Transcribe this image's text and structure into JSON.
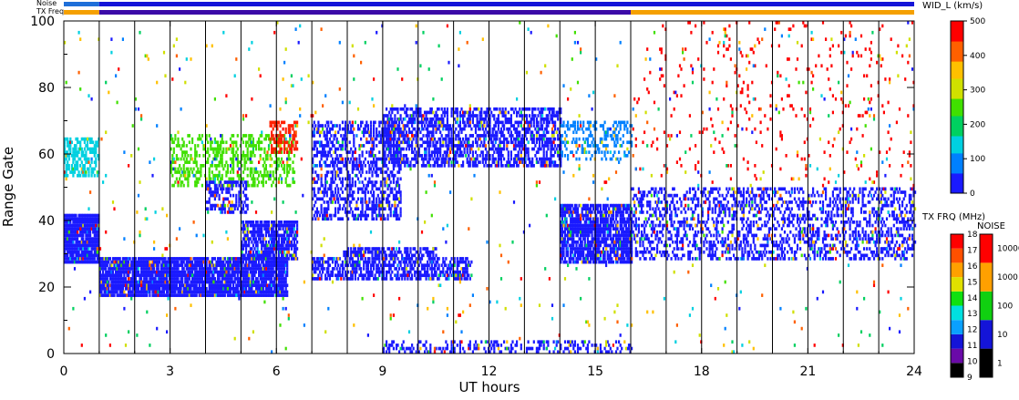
{
  "chart_data": {
    "type": "heatmap",
    "title": "",
    "xlabel": "UT hours",
    "ylabel": "Range Gate",
    "xlim": [
      0,
      24
    ],
    "ylim": [
      0,
      100
    ],
    "xticks": [
      "0",
      "3",
      "6",
      "9",
      "12",
      "15",
      "18",
      "21",
      "24"
    ],
    "yticks": [
      "0",
      "20",
      "40",
      "60",
      "80",
      "100"
    ],
    "hour_markers": [
      1,
      2,
      3,
      4,
      5,
      6,
      7,
      8,
      9,
      10,
      11,
      12,
      13,
      14,
      15,
      16,
      17,
      18,
      19,
      20,
      21,
      22,
      23
    ],
    "top_bars": {
      "noise_label": "Noise",
      "txfreq_label": "TX Freq",
      "noise_segments": [
        {
          "from": 0,
          "to": 1,
          "color": "#1e6fd9"
        },
        {
          "from": 1,
          "to": 24,
          "color": "#1414d8"
        }
      ],
      "txfreq_segments": [
        {
          "from": 0,
          "to": 1,
          "color": "#f5a000"
        },
        {
          "from": 1,
          "to": 16,
          "color": "#3b0aa8"
        },
        {
          "from": 16,
          "to": 24,
          "color": "#f5a000"
        }
      ]
    },
    "colorbars": {
      "width": {
        "title": "WID_L (km/s)",
        "ticks": [
          "0",
          "100",
          "200",
          "300",
          "400",
          "500"
        ],
        "range": [
          0,
          500
        ],
        "colors": [
          "#1a1aff",
          "#0080ff",
          "#00d0e0",
          "#00d060",
          "#40e000",
          "#d0e000",
          "#ffc000",
          "#ff6000",
          "#ff0000"
        ]
      },
      "txfreq": {
        "title": "TX FRQ (MHz)",
        "ticks": [
          "9",
          "10",
          "11",
          "12",
          "13",
          "14",
          "15",
          "16",
          "17",
          "18"
        ],
        "colors": [
          "#000000",
          "#6a0aa8",
          "#1414d8",
          "#0aa0ff",
          "#00e0e0",
          "#10e010",
          "#e0e000",
          "#ffa000",
          "#ff5000",
          "#ff0000"
        ]
      },
      "noise": {
        "title": "NOISE",
        "ticks": [
          "1",
          "10",
          "100",
          "1000",
          "10000"
        ],
        "colors": [
          "#000000",
          "#1414d8",
          "#10d010",
          "#ffa000",
          "#ff0000"
        ]
      }
    },
    "regions": [
      {
        "name": "blue-band-morning",
        "x": [
          0,
          1
        ],
        "y": [
          27,
          42
        ],
        "density": 0.95,
        "color": "#1a1aff"
      },
      {
        "name": "blue-band-low",
        "x": [
          1,
          6.3
        ],
        "y": [
          17,
          29
        ],
        "density": 0.9,
        "color": "#1a1aff"
      },
      {
        "name": "blue-band-rise",
        "x": [
          5,
          6.6
        ],
        "y": [
          28,
          40
        ],
        "density": 0.75,
        "color": "#1a1aff"
      },
      {
        "name": "scatter-60-morning",
        "x": [
          0,
          1
        ],
        "y": [
          53,
          65
        ],
        "density": 0.6,
        "color": "#00d0e0"
      },
      {
        "name": "scatter-50-60-day",
        "x": [
          3,
          6.5
        ],
        "y": [
          50,
          66
        ],
        "density": 0.35,
        "color": "#40e000"
      },
      {
        "name": "cluster-6hr",
        "x": [
          5.8,
          6.6
        ],
        "y": [
          60,
          70
        ],
        "density": 0.55,
        "color": "#ff2000"
      },
      {
        "name": "blue-patches-45",
        "x": [
          4,
          5.2
        ],
        "y": [
          42,
          52
        ],
        "density": 0.5,
        "color": "#1a1aff"
      },
      {
        "name": "curve-8-9hr",
        "x": [
          7,
          9.5
        ],
        "y": [
          40,
          70
        ],
        "density": 0.45,
        "color": "#1a1aff"
      },
      {
        "name": "arc-9-15hr",
        "x": [
          9,
          14
        ],
        "y": [
          56,
          74
        ],
        "density": 0.55,
        "color": "#1a1aff"
      },
      {
        "name": "arc-14-15hr",
        "x": [
          14,
          16
        ],
        "y": [
          58,
          70
        ],
        "density": 0.35,
        "color": "#0080ff"
      },
      {
        "name": "band-25",
        "x": [
          7,
          11.5
        ],
        "y": [
          22,
          29
        ],
        "density": 0.6,
        "color": "#1a1aff"
      },
      {
        "name": "band-30",
        "x": [
          7.8,
          10.5
        ],
        "y": [
          29,
          32
        ],
        "density": 0.6,
        "color": "#1a1aff"
      },
      {
        "name": "blue-15-16hr",
        "x": [
          14,
          16
        ],
        "y": [
          27,
          45
        ],
        "density": 0.8,
        "color": "#1a1aff"
      },
      {
        "name": "blue-16-24hr",
        "x": [
          16,
          24
        ],
        "y": [
          28,
          50
        ],
        "density": 0.35,
        "color": "#1a1aff"
      },
      {
        "name": "bottom-band",
        "x": [
          9,
          16
        ],
        "y": [
          0,
          4
        ],
        "density": 0.35,
        "color": "#1a1aff"
      },
      {
        "name": "red-scatter-upper",
        "x": [
          16,
          24
        ],
        "y": [
          50,
          100
        ],
        "density": 0.03,
        "color": "#ff0000"
      },
      {
        "name": "mixed-scatter",
        "x": [
          0,
          24
        ],
        "y": [
          0,
          100
        ],
        "density": 0.012,
        "color": "#ff0000"
      }
    ]
  }
}
